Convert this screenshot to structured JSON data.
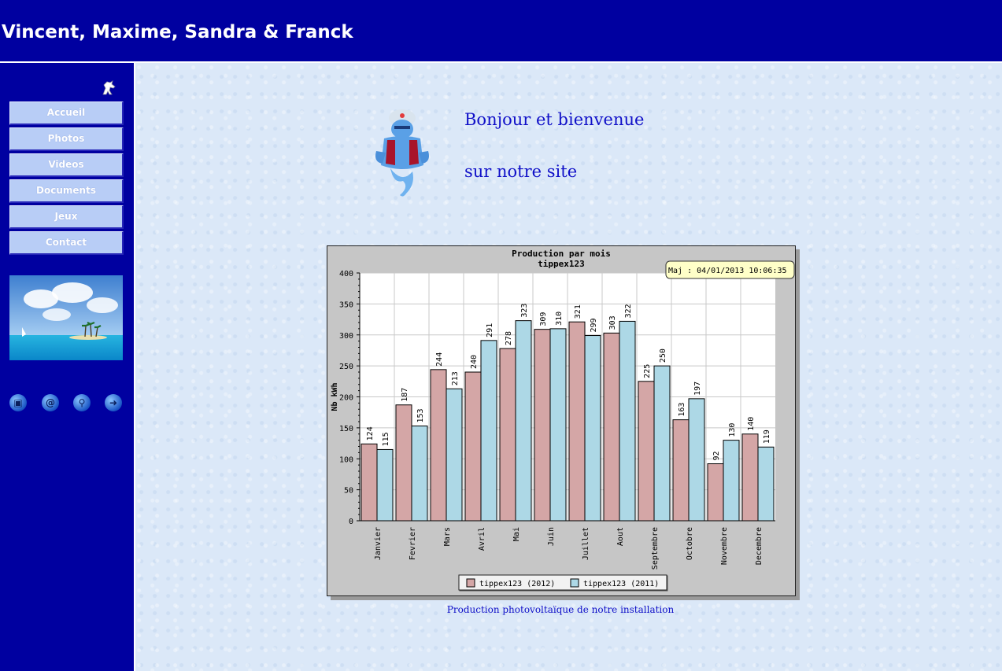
{
  "header": {
    "title": "Vincent, Maxime, Sandra & Franck"
  },
  "sidebar": {
    "nav": [
      {
        "label": "Accueil"
      },
      {
        "label": "Photos"
      },
      {
        "label": "Videos"
      },
      {
        "label": "Documents"
      },
      {
        "label": "Jeux"
      },
      {
        "label": "Contact"
      }
    ],
    "icons": [
      "book-icon",
      "email-icon",
      "search-icon",
      "exit-icon"
    ]
  },
  "main": {
    "welcome_line1": "Bonjour et bienvenue",
    "welcome_line2": "sur notre site",
    "caption": "Production photovoltaïque de notre installation"
  },
  "colors": {
    "header_bg": "#0000a0",
    "series_2012": "#d4a6a6",
    "series_2011": "#add8e6"
  },
  "chart_data": {
    "type": "bar",
    "title": "Production par mois",
    "subtitle": "tippex123",
    "update_label": "Maj : 04/01/2013 10:06:35",
    "ylabel": "Nb kWh",
    "xlabel": "",
    "ylim": [
      0,
      400
    ],
    "yticks": [
      0,
      50,
      100,
      150,
      200,
      250,
      300,
      350,
      400
    ],
    "grid": true,
    "legend_position": "bottom",
    "categories": [
      "Janvier",
      "Fevrier",
      "Mars",
      "Avril",
      "Mai",
      "Juin",
      "Juillet",
      "Aout",
      "Septembre",
      "Octobre",
      "Novembre",
      "Decembre"
    ],
    "series": [
      {
        "name": "tippex123 (2012)",
        "values": [
          124,
          187,
          244,
          240,
          278,
          309,
          321,
          303,
          225,
          163,
          92,
          140
        ]
      },
      {
        "name": "tippex123 (2011)",
        "values": [
          115,
          153,
          213,
          291,
          323,
          310,
          299,
          322,
          250,
          197,
          130,
          119
        ]
      }
    ]
  }
}
